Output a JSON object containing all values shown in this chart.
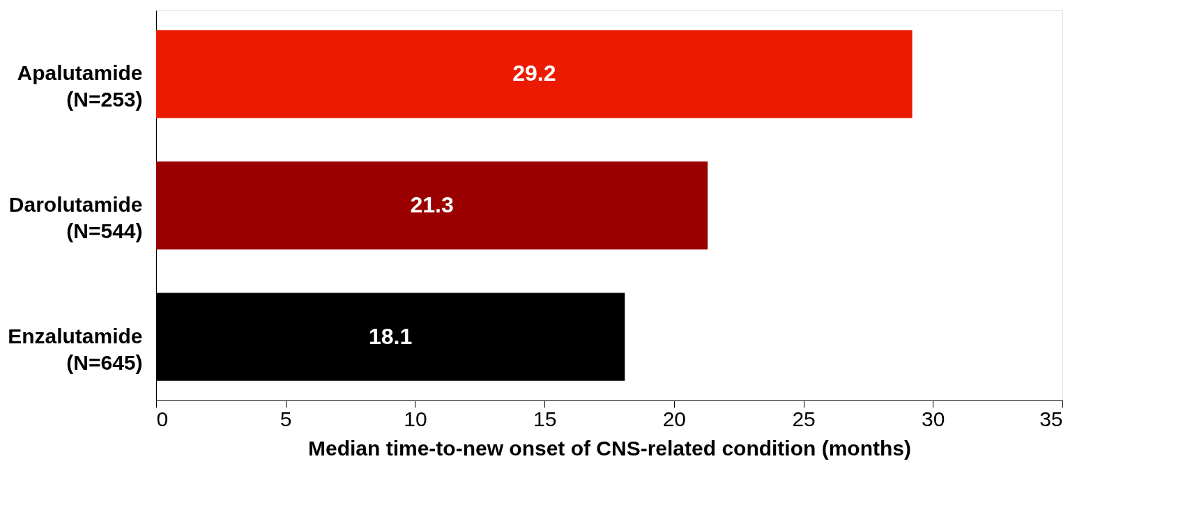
{
  "chart_data": {
    "type": "bar",
    "orientation": "horizontal",
    "categories": [
      "Apalutamide\n(N=253)",
      "Darolutamide\n(N=544)",
      "Enzalutamide\n(N=645)"
    ],
    "values": [
      29.2,
      21.3,
      18.1
    ],
    "colors": [
      "#ec1a00",
      "#9b0000",
      "#000000"
    ],
    "xlim": [
      0,
      35
    ],
    "xticks": [
      0,
      5,
      10,
      15,
      20,
      25,
      30,
      35
    ],
    "xlabel": "Median time-to-new onset of CNS-related condition (months)",
    "data_labels": true
  }
}
